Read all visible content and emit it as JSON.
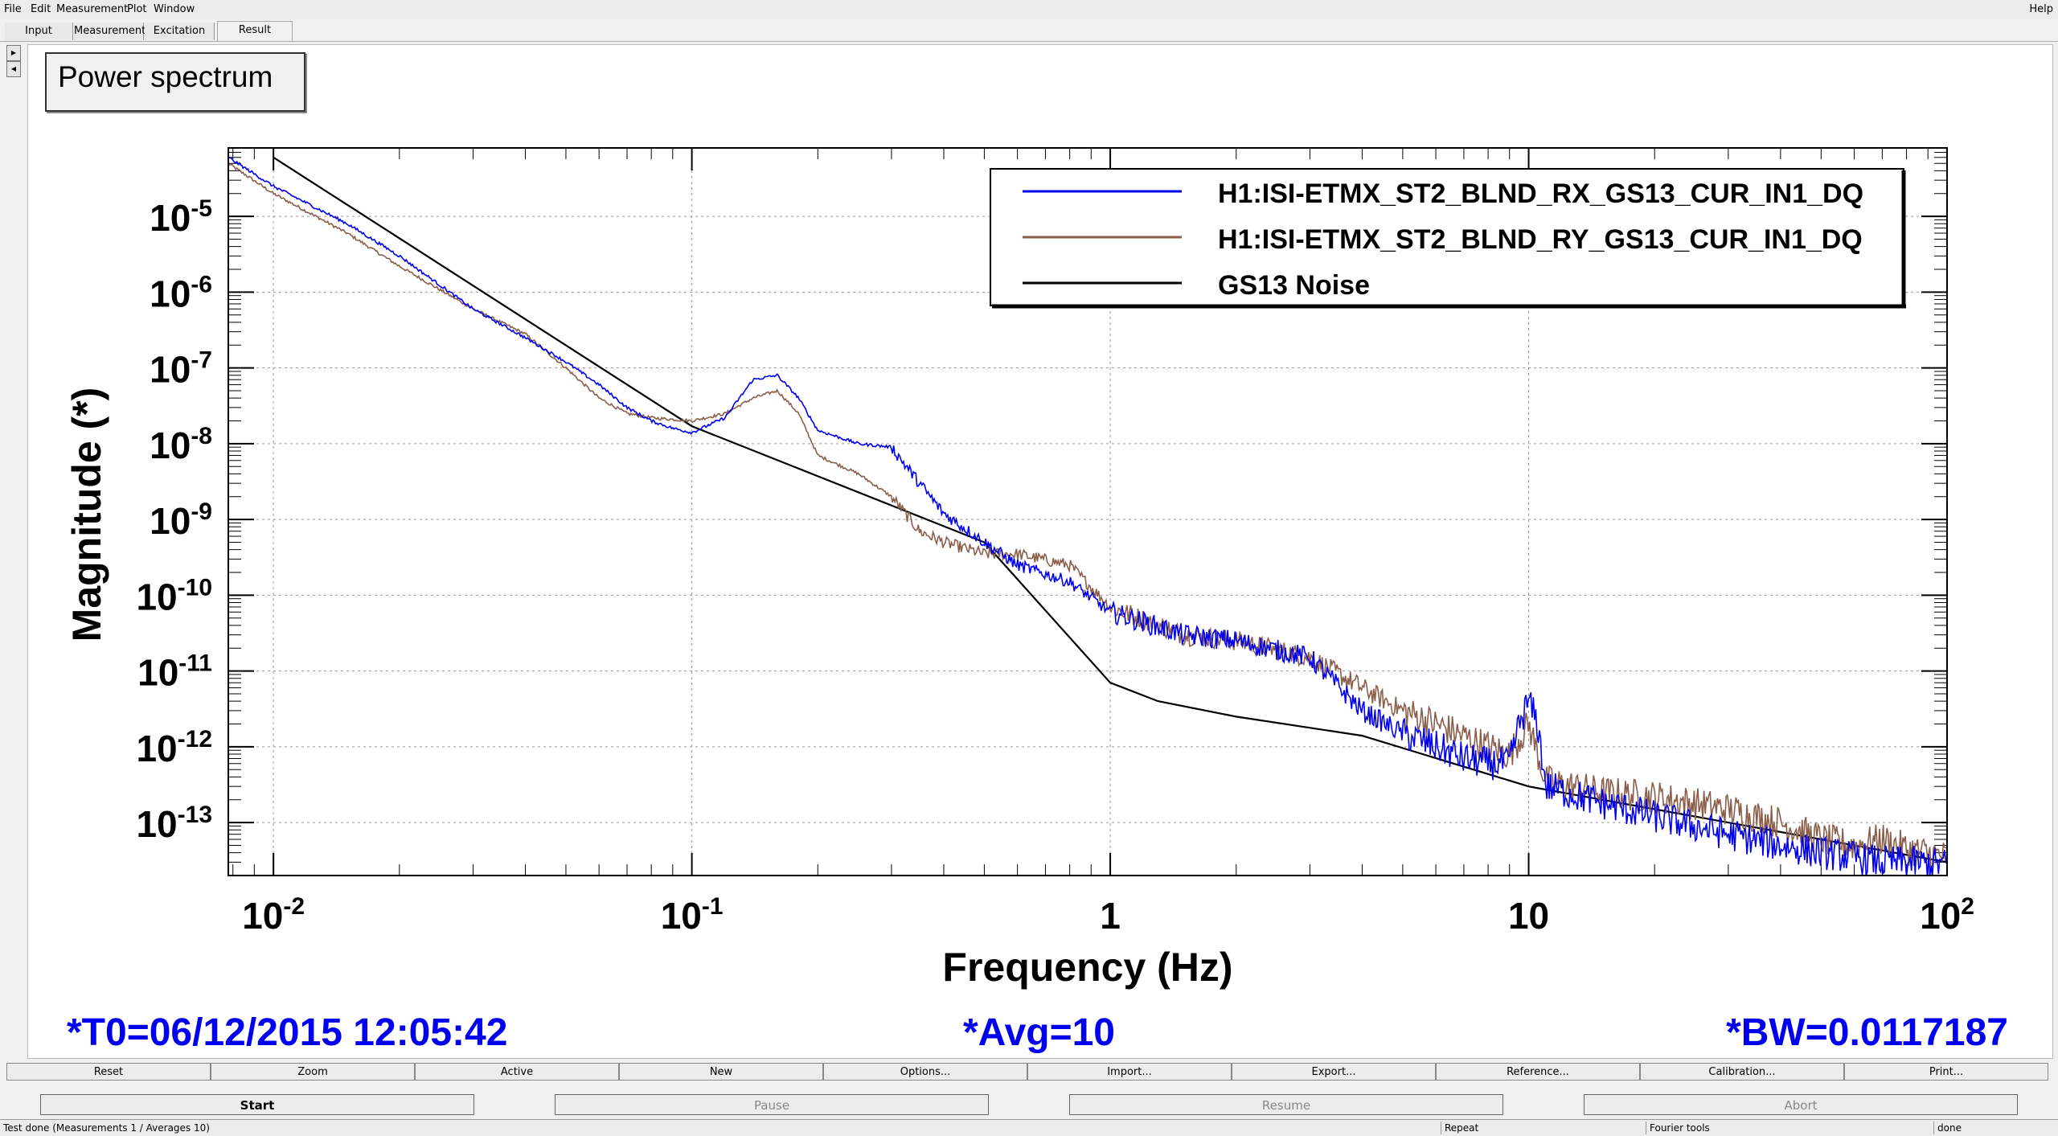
{
  "menubar": {
    "items": [
      "File",
      "Edit",
      "Measurement",
      "Plot",
      "Window"
    ],
    "help": "Help"
  },
  "tabs": [
    "Input",
    "Measurement",
    "Excitation",
    "Result"
  ],
  "active_tab": "Result",
  "plot_title": "Power spectrum",
  "chart_data": {
    "type": "line",
    "title": "Power spectrum",
    "xlabel": "Frequency (Hz)",
    "ylabel": "Magnitude (*)",
    "xscale": "log",
    "yscale": "log",
    "xlim": [
      0.0078,
      100
    ],
    "ylim": [
      2e-14,
      8e-05
    ],
    "x_ticks": [
      {
        "value": 0.01,
        "base": "10",
        "exp": "-2"
      },
      {
        "value": 0.1,
        "base": "10",
        "exp": "-1"
      },
      {
        "value": 1,
        "base": "1",
        "exp": ""
      },
      {
        "value": 10,
        "base": "10",
        "exp": ""
      },
      {
        "value": 100,
        "base": "10",
        "exp": "2"
      }
    ],
    "y_ticks": [
      {
        "value": 1e-05,
        "exp": "-5"
      },
      {
        "value": 1e-06,
        "exp": "-6"
      },
      {
        "value": 1e-07,
        "exp": "-7"
      },
      {
        "value": 1e-08,
        "exp": "-8"
      },
      {
        "value": 1e-09,
        "exp": "-9"
      },
      {
        "value": 1e-10,
        "exp": "-10"
      },
      {
        "value": 1e-11,
        "exp": "-11"
      },
      {
        "value": 1e-12,
        "exp": "-12"
      },
      {
        "value": 1e-13,
        "exp": "-13"
      }
    ],
    "y_tick_base": "10",
    "grid": true,
    "legend_position": "top-right",
    "series": [
      {
        "name": "H1:ISI-ETMX_ST2_BLND_RX_GS13_CUR_IN1_DQ",
        "color": "#0000ee",
        "noisy": true,
        "x": [
          0.0078,
          0.01,
          0.015,
          0.02,
          0.03,
          0.04,
          0.05,
          0.06,
          0.07,
          0.08,
          0.09,
          0.1,
          0.12,
          0.14,
          0.16,
          0.18,
          0.2,
          0.25,
          0.3,
          0.35,
          0.4,
          0.5,
          0.6,
          0.8,
          1,
          1.5,
          2,
          3,
          4,
          5,
          6,
          7,
          8,
          9,
          9.5,
          10,
          10.5,
          11,
          15,
          20,
          30,
          40,
          50,
          60,
          70,
          80,
          100
        ],
        "y": [
          6e-05,
          2.5e-05,
          8e-06,
          3e-06,
          6e-07,
          2.5e-07,
          1.2e-07,
          6e-08,
          3e-08,
          2e-08,
          1.6e-08,
          1.4e-08,
          2.2e-08,
          7e-08,
          8e-08,
          4e-08,
          1.5e-08,
          1e-08,
          9e-09,
          3e-09,
          1.2e-09,
          5e-10,
          2.5e-10,
          1.5e-10,
          6e-11,
          3e-11,
          2.5e-11,
          1.5e-11,
          3e-12,
          1.5e-12,
          1e-12,
          7e-13,
          6e-13,
          6e-13,
          2e-12,
          4e-12,
          2e-12,
          3e-13,
          1.8e-13,
          1.2e-13,
          7e-14,
          5e-14,
          4e-14,
          3.5e-14,
          3e-14,
          3e-14,
          2.8e-14
        ]
      },
      {
        "name": "H1:ISI-ETMX_ST2_BLND_RY_GS13_CUR_IN1_DQ",
        "color": "#8b5e4b",
        "noisy": true,
        "x": [
          0.0078,
          0.01,
          0.015,
          0.02,
          0.03,
          0.04,
          0.05,
          0.06,
          0.07,
          0.08,
          0.1,
          0.12,
          0.14,
          0.16,
          0.18,
          0.2,
          0.25,
          0.3,
          0.35,
          0.4,
          0.5,
          0.6,
          0.8,
          1,
          1.5,
          2,
          3,
          4,
          5,
          6,
          8,
          9,
          10,
          11,
          15,
          20,
          30,
          40,
          50,
          60,
          70,
          80,
          100
        ],
        "y": [
          5e-05,
          2e-05,
          6e-06,
          2.2e-06,
          6e-07,
          2.8e-07,
          1e-07,
          4e-08,
          2.5e-08,
          2.2e-08,
          2e-08,
          2.5e-08,
          4e-08,
          5e-08,
          2.5e-08,
          7e-09,
          4e-09,
          2e-09,
          7e-10,
          5e-10,
          3.5e-10,
          3.5e-10,
          2.5e-10,
          7e-11,
          3e-11,
          2.5e-11,
          1.5e-11,
          6e-12,
          3e-12,
          2e-12,
          1e-12,
          8e-13,
          2e-12,
          3.5e-13,
          2.5e-13,
          2.2e-13,
          1.5e-13,
          1e-13,
          6e-14,
          5e-14,
          6e-14,
          4.5e-14,
          3.5e-14
        ]
      },
      {
        "name": "GS13 Noise",
        "color": "#000000",
        "noisy": false,
        "x": [
          0.01,
          0.1,
          0.5,
          1,
          1.3,
          2,
          4,
          10,
          20,
          50,
          100
        ],
        "y": [
          6e-05,
          1.7e-08,
          5e-10,
          7e-12,
          4e-12,
          2.5e-12,
          1.4e-12,
          3e-13,
          1.5e-13,
          6e-14,
          3e-14
        ]
      }
    ]
  },
  "stats": {
    "t0": "*T0=06/12/2015 12:05:42",
    "avg": "*Avg=10",
    "bw": "*BW=0.0117187"
  },
  "toolbar": [
    "Reset",
    "Zoom",
    "Active",
    "New",
    "Options...",
    "Import...",
    "Export...",
    "Reference...",
    "Calibration...",
    "Print..."
  ],
  "controls": {
    "start": "Start",
    "pause": "Pause",
    "resume": "Resume",
    "abort": "Abort"
  },
  "status": {
    "message": "Test done (Measurements 1 / Averages 10)",
    "repeat": "Repeat",
    "tool": "Fourier tools",
    "state": "done"
  }
}
